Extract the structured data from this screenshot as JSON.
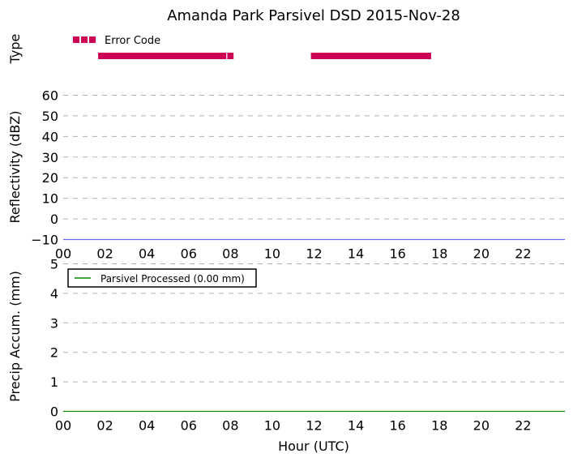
{
  "chart_data": {
    "title": "Amanda Park Parsivel DSD 2015-Nov-28",
    "x_axis": {
      "label": "Hour (UTC)",
      "range": [
        0,
        24
      ],
      "ticks": [
        0,
        2,
        4,
        6,
        8,
        10,
        12,
        14,
        16,
        18,
        20,
        22
      ],
      "tick_labels": [
        "00",
        "02",
        "04",
        "06",
        "08",
        "10",
        "12",
        "14",
        "16",
        "18",
        "20",
        "22"
      ]
    },
    "panels": [
      {
        "id": "type",
        "type": "timeline",
        "ylabel": "Type",
        "legend": {
          "placement": "top-left",
          "entries": [
            {
              "name": "Error Code",
              "color": "#cc0055"
            }
          ]
        },
        "segments": [
          {
            "name": "Error Code",
            "start": 1.67,
            "end": 7.8
          },
          {
            "name": "Error Code",
            "start": 7.85,
            "end": 8.15
          },
          {
            "name": "Error Code",
            "start": 11.85,
            "end": 17.6
          }
        ]
      },
      {
        "id": "reflectivity",
        "type": "line",
        "ylabel": "Reflectivity (dBZ)",
        "ylim": [
          -10,
          60
        ],
        "yticks": [
          -10,
          0,
          10,
          20,
          30,
          40,
          50,
          60
        ],
        "ytick_labels": [
          "−10",
          "0",
          "10",
          "20",
          "30",
          "40",
          "50",
          "60"
        ],
        "grid": true,
        "series": [
          {
            "color": "#6666ee",
            "x": [
              0,
              24
            ],
            "y": [
              -10,
              -10
            ]
          }
        ]
      },
      {
        "id": "precip",
        "type": "line",
        "ylabel": "Precip Accum. (mm)",
        "ylim": [
          0,
          5
        ],
        "yticks": [
          0,
          1,
          2,
          3,
          4,
          5
        ],
        "ytick_labels": [
          "0",
          "1",
          "2",
          "3",
          "4",
          "5"
        ],
        "grid": true,
        "legend": {
          "placement": "top-left",
          "entries": [
            {
              "name": "Parsivel Processed (0.00 mm)",
              "color": "#008800"
            }
          ]
        },
        "series": [
          {
            "name": "Parsivel Processed (0.00 mm)",
            "color": "#008800",
            "x": [
              0,
              24
            ],
            "y": [
              0,
              0
            ]
          }
        ]
      }
    ]
  }
}
